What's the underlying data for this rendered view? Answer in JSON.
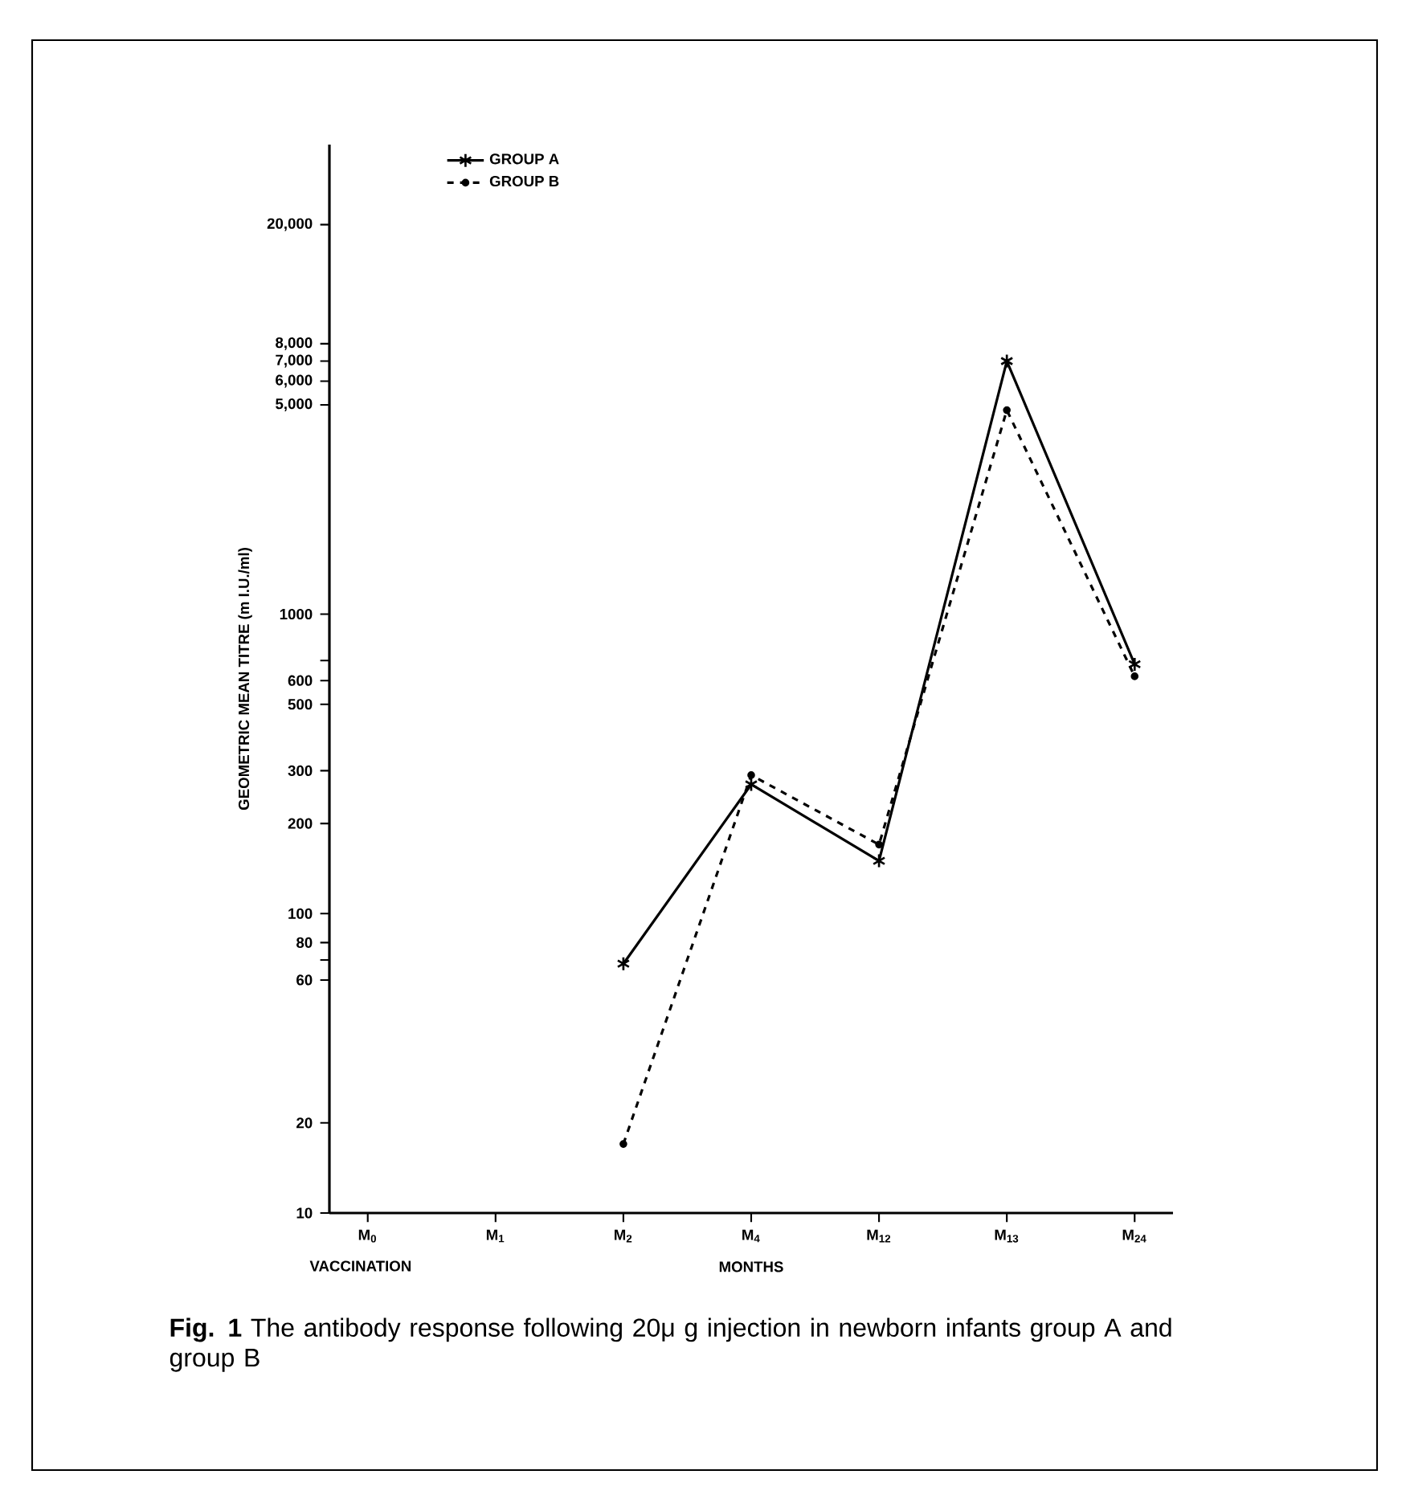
{
  "chart_data": {
    "type": "line",
    "categories": [
      "M$_{0}$",
      "M$_{1}$",
      "M$_{2}$",
      "M$_{4}$",
      "M$_{12}$",
      "M$_{13}$",
      "M$_{24}$"
    ],
    "series": [
      {
        "name": "GROUP  A",
        "color": "#000000",
        "values": [
          null,
          null,
          68,
          270,
          150,
          7000,
          680
        ],
        "marker": "cross",
        "line_style": "solid"
      },
      {
        "name": "GROUP  B",
        "color": "#000000",
        "values": [
          null,
          null,
          17,
          290,
          170,
          4800,
          620
        ],
        "marker": "circle",
        "line_style": "dashed"
      }
    ],
    "xlabel": "MONTHS",
    "ylabel": "GEOMETRIC   MEAN   TITRE   (m I.U./ml)",
    "log": "y",
    "ylim": [
      10,
      37000
    ],
    "yticks": [
      {
        "value": 10,
        "label": "10"
      },
      {
        "value": 20,
        "label": "20"
      },
      {
        "value": 60,
        "label": "60"
      },
      {
        "value": 70,
        "label": null
      },
      {
        "value": 80,
        "label": "80"
      },
      {
        "value": 100,
        "label": "100"
      },
      {
        "value": 200,
        "label": "200"
      },
      {
        "value": 300,
        "label": "300"
      },
      {
        "value": 500,
        "label": "500"
      },
      {
        "value": 600,
        "label": "600"
      },
      {
        "value": 700,
        "label": null
      },
      {
        "value": 1000,
        "label": "1000"
      },
      {
        "value": 5000,
        "label": "5,000"
      },
      {
        "value": 6000,
        "label": "6,000"
      },
      {
        "value": 7000,
        "label": "7,000"
      },
      {
        "value": 8000,
        "label": "8,000"
      },
      {
        "value": 20000,
        "label": "20,000"
      }
    ],
    "legend": "top",
    "grid": false,
    "annotations": [
      "VACCINATION",
      "**Fig.  1**   The antibody response following 20μ g injection in newborn infants group A and group B"
    ]
  }
}
